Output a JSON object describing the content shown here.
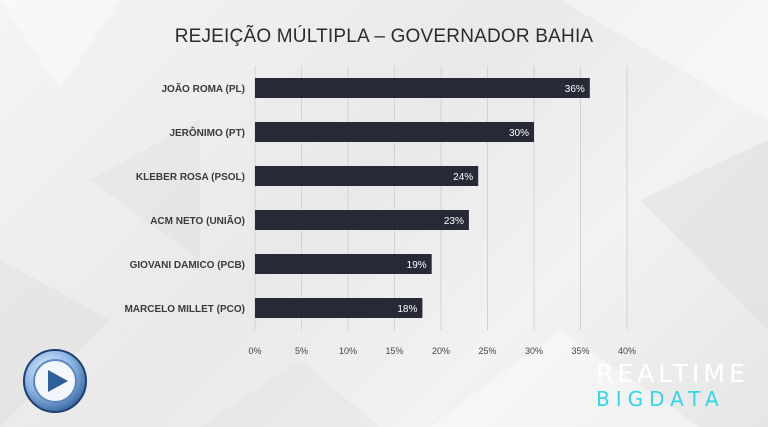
{
  "chart_data": {
    "type": "bar",
    "orientation": "horizontal",
    "title": "REJEIÇÃO MÚLTIPLA – GOVERNADOR BAHIA",
    "categories": [
      "JOÃO ROMA (PL)",
      "JERÔNIMO (PT)",
      "KLEBER ROSA (PSOL)",
      "ACM NETO (UNIÃO)",
      "GIOVANI DAMICO (PCB)",
      "MARCELO MILLET (PCO)"
    ],
    "values": [
      36,
      30,
      24,
      23,
      19,
      18
    ],
    "value_labels": [
      "36%",
      "30%",
      "24%",
      "23%",
      "19%",
      "18%"
    ],
    "x_ticks": [
      0,
      5,
      10,
      15,
      20,
      25,
      30,
      35,
      40
    ],
    "x_tick_labels": [
      "0%",
      "5%",
      "10%",
      "15%",
      "20%",
      "25%",
      "30%",
      "35%",
      "40%"
    ],
    "xlim": [
      0,
      40
    ],
    "grid": true,
    "bar_color": "#252a36"
  },
  "brand": {
    "line1": "REALTIME",
    "line2": "BIGDATA",
    "line1_color": "#ffffff",
    "line2_color": "#31d6e8"
  },
  "logo": {
    "icon": "record-tv-logo-icon"
  }
}
